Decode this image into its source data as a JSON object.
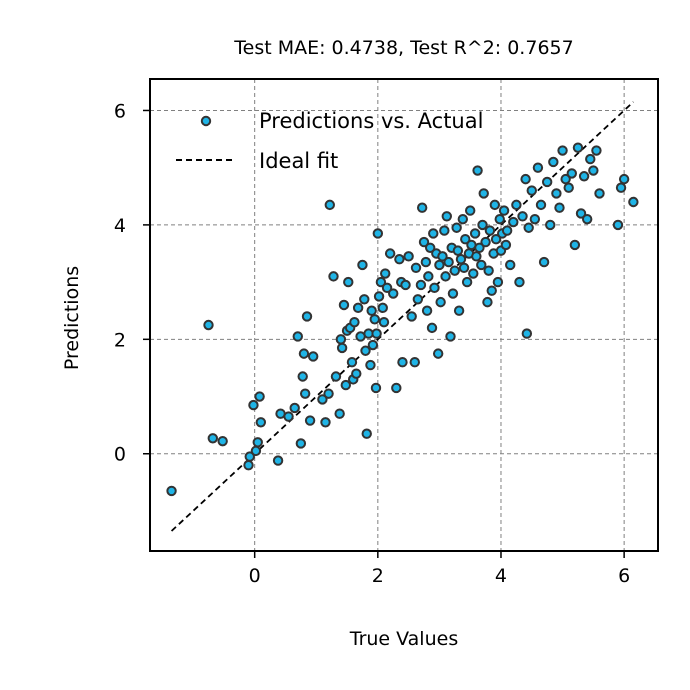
{
  "chart_data": {
    "type": "scatter",
    "title": "Test MAE: 0.4738, Test R^2: 0.7657",
    "xlabel": "True Values",
    "ylabel": "Predictions",
    "xlim": [
      -1.7,
      6.55
    ],
    "ylim": [
      -1.7,
      6.55
    ],
    "xticks": [
      0,
      2,
      4,
      6
    ],
    "yticks": [
      0,
      2,
      4,
      6
    ],
    "xtick_labels": [
      "0",
      "2",
      "4",
      "6"
    ],
    "ytick_labels": [
      "0",
      "2",
      "4",
      "6"
    ],
    "grid": true,
    "legend_position": "top-left",
    "ideal_fit": {
      "name": "Ideal fit",
      "x": [
        -1.35,
        6.15
      ],
      "y": [
        -1.35,
        6.15
      ],
      "color": "#000000"
    },
    "series": [
      {
        "name": "Predictions vs. Actual",
        "marker_fill": "#1fb4e6",
        "marker_edge": "#333333",
        "points": [
          [
            -1.35,
            -0.65
          ],
          [
            -0.75,
            2.25
          ],
          [
            -0.68,
            0.27
          ],
          [
            -0.52,
            0.22
          ],
          [
            -0.1,
            -0.2
          ],
          [
            -0.08,
            -0.05
          ],
          [
            -0.02,
            0.85
          ],
          [
            0.02,
            0.05
          ],
          [
            0.05,
            0.2
          ],
          [
            0.08,
            1.0
          ],
          [
            0.1,
            0.55
          ],
          [
            0.38,
            -0.12
          ],
          [
            0.42,
            0.7
          ],
          [
            0.55,
            0.65
          ],
          [
            0.65,
            0.8
          ],
          [
            0.7,
            2.05
          ],
          [
            0.75,
            0.18
          ],
          [
            0.78,
            1.35
          ],
          [
            0.82,
            1.05
          ],
          [
            0.8,
            1.75
          ],
          [
            0.85,
            2.4
          ],
          [
            0.9,
            0.58
          ],
          [
            0.95,
            1.7
          ],
          [
            1.1,
            0.95
          ],
          [
            1.15,
            0.55
          ],
          [
            1.2,
            1.05
          ],
          [
            1.22,
            4.35
          ],
          [
            1.28,
            3.1
          ],
          [
            1.32,
            1.35
          ],
          [
            1.38,
            0.7
          ],
          [
            1.4,
            2.0
          ],
          [
            1.42,
            1.85
          ],
          [
            1.45,
            2.6
          ],
          [
            1.48,
            1.2
          ],
          [
            1.5,
            2.15
          ],
          [
            1.52,
            3.0
          ],
          [
            1.55,
            2.2
          ],
          [
            1.58,
            1.6
          ],
          [
            1.6,
            1.3
          ],
          [
            1.62,
            2.3
          ],
          [
            1.65,
            1.4
          ],
          [
            1.68,
            2.55
          ],
          [
            1.72,
            2.05
          ],
          [
            1.75,
            3.3
          ],
          [
            1.78,
            2.7
          ],
          [
            1.8,
            1.8
          ],
          [
            1.82,
            0.35
          ],
          [
            1.85,
            2.1
          ],
          [
            1.88,
            1.55
          ],
          [
            1.9,
            2.5
          ],
          [
            1.92,
            1.9
          ],
          [
            1.95,
            2.35
          ],
          [
            1.97,
            1.15
          ],
          [
            1.98,
            2.1
          ],
          [
            2.0,
            3.85
          ],
          [
            2.02,
            2.75
          ],
          [
            2.05,
            3.0
          ],
          [
            2.08,
            2.55
          ],
          [
            2.1,
            2.3
          ],
          [
            2.12,
            3.15
          ],
          [
            2.15,
            2.9
          ],
          [
            2.2,
            3.5
          ],
          [
            2.25,
            2.8
          ],
          [
            2.3,
            1.15
          ],
          [
            2.35,
            3.4
          ],
          [
            2.38,
            3.0
          ],
          [
            2.4,
            1.6
          ],
          [
            2.45,
            2.95
          ],
          [
            2.5,
            3.45
          ],
          [
            2.55,
            2.4
          ],
          [
            2.6,
            1.6
          ],
          [
            2.62,
            3.25
          ],
          [
            2.65,
            2.7
          ],
          [
            2.7,
            2.95
          ],
          [
            2.72,
            4.3
          ],
          [
            2.75,
            3.7
          ],
          [
            2.78,
            3.35
          ],
          [
            2.8,
            2.5
          ],
          [
            2.82,
            3.1
          ],
          [
            2.85,
            3.6
          ],
          [
            2.88,
            2.2
          ],
          [
            2.9,
            3.85
          ],
          [
            2.92,
            2.9
          ],
          [
            2.95,
            3.5
          ],
          [
            2.98,
            1.75
          ],
          [
            3.0,
            3.3
          ],
          [
            3.02,
            2.65
          ],
          [
            3.05,
            3.45
          ],
          [
            3.08,
            3.9
          ],
          [
            3.1,
            3.1
          ],
          [
            3.12,
            4.15
          ],
          [
            3.15,
            3.35
          ],
          [
            3.18,
            2.05
          ],
          [
            3.2,
            3.6
          ],
          [
            3.22,
            2.8
          ],
          [
            3.25,
            3.2
          ],
          [
            3.28,
            3.95
          ],
          [
            3.3,
            3.55
          ],
          [
            3.32,
            2.5
          ],
          [
            3.35,
            3.4
          ],
          [
            3.38,
            4.1
          ],
          [
            3.4,
            3.25
          ],
          [
            3.42,
            3.75
          ],
          [
            3.45,
            3.0
          ],
          [
            3.48,
            3.5
          ],
          [
            3.5,
            4.25
          ],
          [
            3.52,
            3.65
          ],
          [
            3.55,
            3.15
          ],
          [
            3.58,
            3.85
          ],
          [
            3.6,
            3.45
          ],
          [
            3.62,
            4.95
          ],
          [
            3.65,
            3.6
          ],
          [
            3.68,
            3.3
          ],
          [
            3.7,
            4.0
          ],
          [
            3.72,
            4.55
          ],
          [
            3.75,
            3.7
          ],
          [
            3.78,
            2.65
          ],
          [
            3.8,
            3.2
          ],
          [
            3.82,
            3.9
          ],
          [
            3.85,
            2.85
          ],
          [
            3.88,
            3.5
          ],
          [
            3.9,
            4.35
          ],
          [
            3.92,
            3.75
          ],
          [
            3.95,
            3.0
          ],
          [
            3.98,
            4.1
          ],
          [
            4.0,
            3.55
          ],
          [
            4.02,
            3.85
          ],
          [
            4.05,
            4.25
          ],
          [
            4.08,
            3.65
          ],
          [
            4.1,
            3.9
          ],
          [
            4.15,
            3.3
          ],
          [
            4.2,
            4.05
          ],
          [
            4.25,
            4.35
          ],
          [
            4.3,
            3.0
          ],
          [
            4.35,
            4.15
          ],
          [
            4.4,
            4.8
          ],
          [
            4.42,
            2.1
          ],
          [
            4.45,
            3.95
          ],
          [
            4.5,
            4.6
          ],
          [
            4.55,
            4.1
          ],
          [
            4.6,
            5.0
          ],
          [
            4.65,
            4.35
          ],
          [
            4.7,
            3.35
          ],
          [
            4.75,
            4.75
          ],
          [
            4.8,
            4.0
          ],
          [
            4.85,
            5.1
          ],
          [
            4.9,
            4.55
          ],
          [
            4.95,
            4.3
          ],
          [
            5.0,
            5.3
          ],
          [
            5.05,
            4.8
          ],
          [
            5.1,
            4.65
          ],
          [
            5.15,
            4.9
          ],
          [
            5.2,
            3.65
          ],
          [
            5.25,
            5.35
          ],
          [
            5.3,
            4.2
          ],
          [
            5.35,
            4.85
          ],
          [
            5.4,
            4.1
          ],
          [
            5.45,
            5.15
          ],
          [
            5.5,
            4.95
          ],
          [
            5.55,
            5.3
          ],
          [
            5.6,
            4.55
          ],
          [
            5.9,
            4.0
          ],
          [
            5.95,
            4.65
          ],
          [
            6.0,
            4.8
          ],
          [
            6.15,
            4.4
          ]
        ]
      }
    ]
  }
}
